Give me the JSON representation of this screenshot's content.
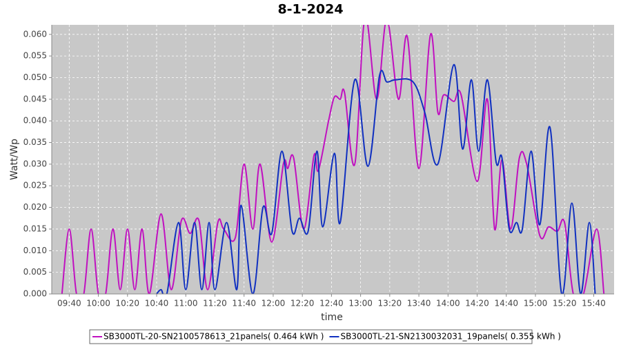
{
  "chart_data": {
    "type": "line",
    "title": "8-1-2024",
    "x_label": "time",
    "y_label": "Watt/Wp",
    "xlim": [
      "09:28",
      "15:54"
    ],
    "xticks": [
      "09:40",
      "10:00",
      "10:20",
      "10:40",
      "11:00",
      "11:20",
      "11:40",
      "12:00",
      "12:20",
      "12:40",
      "13:00",
      "13:20",
      "13:40",
      "14:00",
      "14:20",
      "14:40",
      "15:00",
      "15:20",
      "15:40"
    ],
    "ylim": [
      0,
      0.0622
    ],
    "yticks": [
      {
        "value": 0,
        "label": "0.000"
      },
      {
        "value": 0.005,
        "label": "0.005"
      },
      {
        "value": 0.01,
        "label": "0.010"
      },
      {
        "value": 0.015,
        "label": "0.015"
      },
      {
        "value": 0.02,
        "label": "0.020"
      },
      {
        "value": 0.025,
        "label": "0.025"
      },
      {
        "value": 0.03,
        "label": "0.030"
      },
      {
        "value": 0.035,
        "label": "0.035"
      },
      {
        "value": 0.04,
        "label": "0.040"
      },
      {
        "value": 0.045,
        "label": "0.045"
      },
      {
        "value": 0.05,
        "label": "0.050"
      },
      {
        "value": 0.055,
        "label": "0.055"
      },
      {
        "value": 0.06,
        "label": "0.060"
      }
    ],
    "grid": true,
    "legend": "bottom",
    "series": [
      {
        "name": "SB3000TL-20-SN2100578613_21panels( 0.464 kWh )",
        "color": "#c010c0",
        "x": [
          "09:35",
          "09:40",
          "09:45",
          "09:50",
          "09:55",
          "10:00",
          "10:05",
          "10:10",
          "10:15",
          "10:20",
          "10:25",
          "10:30",
          "10:35",
          "10:43",
          "10:50",
          "10:57",
          "11:03",
          "11:09",
          "11:15",
          "11:22",
          "11:26",
          "11:34",
          "11:40",
          "11:46",
          "11:51",
          "11:59",
          "12:07",
          "12:10",
          "12:14",
          "12:21",
          "12:28",
          "12:31",
          "12:38",
          "12:42",
          "12:46",
          "12:49",
          "12:56",
          "13:03",
          "13:11",
          "13:18",
          "13:26",
          "13:32",
          "13:40",
          "13:48",
          "13:53",
          "13:57",
          "14:04",
          "14:09",
          "14:20",
          "14:27",
          "14:32",
          "14:37",
          "14:43",
          "14:49",
          "14:54",
          "15:03",
          "15:09",
          "15:15",
          "15:20",
          "15:26",
          "15:33",
          "15:42",
          "15:47"
        ],
        "values": [
          0,
          0.015,
          0,
          0,
          0.015,
          0,
          0,
          0.015,
          0.001,
          0.015,
          0.001,
          0.015,
          0,
          0.0185,
          0.001,
          0.017,
          0.014,
          0.017,
          0.001,
          0.0165,
          0.015,
          0.013,
          0.03,
          0.015,
          0.03,
          0.012,
          0.03,
          0.029,
          0.0315,
          0.015,
          0.032,
          0.0285,
          0.04,
          0.0455,
          0.045,
          0.0465,
          0.03,
          0.064,
          0.045,
          0.0635,
          0.045,
          0.0595,
          0.029,
          0.06,
          0.042,
          0.046,
          0.0445,
          0.046,
          0.026,
          0.045,
          0.015,
          0.031,
          0.015,
          0.0315,
          0.03,
          0.0135,
          0.0155,
          0.0145,
          0.0165,
          0,
          0,
          0.015,
          0
        ]
      },
      {
        "name": "SB3000TL-21-SN2130032031_19panels( 0.355 kWh )",
        "color": "#1030c0",
        "x": [
          "10:40",
          "10:43",
          "10:47",
          "10:55",
          "11:00",
          "11:06",
          "11:11",
          "11:16",
          "11:20",
          "11:28",
          "11:35",
          "11:38",
          "11:46",
          "11:53",
          "11:59",
          "12:06",
          "12:13",
          "12:18",
          "12:24",
          "12:30",
          "12:34",
          "12:42",
          "12:46",
          "12:56",
          "13:05",
          "13:13",
          "13:18",
          "13:24",
          "13:36",
          "13:44",
          "13:53",
          "14:04",
          "14:10",
          "14:16",
          "14:21",
          "14:27",
          "14:33",
          "14:37",
          "14:42",
          "14:47",
          "14:51",
          "14:57",
          "15:03",
          "15:10",
          "15:18",
          "15:25",
          "15:31",
          "15:37",
          "15:41"
        ],
        "values": [
          0,
          0.001,
          0,
          0.0165,
          0.001,
          0.0165,
          0.001,
          0.0165,
          0.001,
          0.0165,
          0.001,
          0.0205,
          0,
          0.02,
          0.014,
          0.033,
          0.0145,
          0.0175,
          0.0145,
          0.033,
          0.0155,
          0.0325,
          0.0165,
          0.0495,
          0.0295,
          0.0505,
          0.049,
          0.0495,
          0.049,
          0.042,
          0.03,
          0.053,
          0.0335,
          0.0495,
          0.033,
          0.0495,
          0.0305,
          0.0315,
          0.015,
          0.0165,
          0.015,
          0.033,
          0.016,
          0.0385,
          0,
          0.021,
          0,
          0.0165,
          0
        ]
      }
    ]
  }
}
